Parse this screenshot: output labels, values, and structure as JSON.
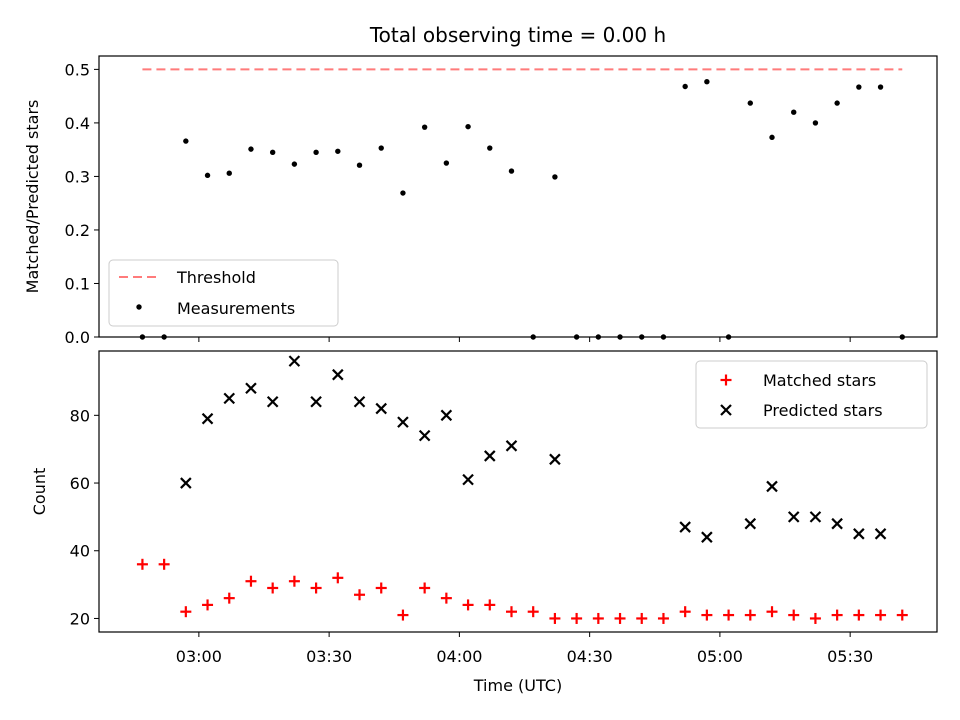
{
  "chart_data": [
    {
      "type": "scatter",
      "title": "Total observing time = 0.00 h",
      "xlabel": "",
      "ylabel": "Matched/Predicted stars",
      "ylim": [
        0,
        0.525
      ],
      "yticks": [
        0.0,
        0.1,
        0.2,
        0.3,
        0.4,
        0.5
      ],
      "ytick_labels": [
        "0.0",
        "0.1",
        "0.2",
        "0.3",
        "0.4",
        "0.5"
      ],
      "threshold": {
        "name": "Threshold",
        "value": 0.5,
        "x_range": [
          "02:47",
          "05:42"
        ],
        "color": "#ff7b7b"
      },
      "legend": {
        "position": "lower-left",
        "entries": [
          "Threshold",
          "Measurements"
        ]
      },
      "series": [
        {
          "name": "Measurements",
          "color": "#000000",
          "marker": "dot",
          "x": [
            "02:47",
            "02:52",
            "02:57",
            "03:02",
            "03:07",
            "03:12",
            "03:17",
            "03:22",
            "03:27",
            "03:32",
            "03:37",
            "03:42",
            "03:47",
            "03:52",
            "03:57",
            "04:02",
            "04:07",
            "04:12",
            "04:17",
            "04:22",
            "04:27",
            "04:32",
            "04:37",
            "04:42",
            "04:47",
            "04:52",
            "04:57",
            "05:02",
            "05:07",
            "05:12",
            "05:17",
            "05:22",
            "05:27",
            "05:32",
            "05:37",
            "05:42"
          ],
          "y": [
            0.0,
            0.0,
            0.366,
            0.302,
            0.306,
            0.351,
            0.345,
            0.323,
            0.345,
            0.347,
            0.321,
            0.353,
            0.269,
            0.392,
            0.325,
            0.393,
            0.353,
            0.31,
            0.0,
            0.299,
            0.0,
            0.0,
            0.0,
            0.0,
            0.0,
            0.468,
            0.477,
            0.0,
            0.437,
            0.373,
            0.42,
            0.4,
            0.437,
            0.467,
            0.467,
            0.0
          ]
        }
      ]
    },
    {
      "type": "scatter",
      "title": "",
      "xlabel": "Time (UTC)",
      "ylabel": "Count",
      "ylim": [
        16,
        99
      ],
      "yticks": [
        20,
        40,
        60,
        80
      ],
      "ytick_labels": [
        "20",
        "40",
        "60",
        "80"
      ],
      "xlim": [
        "02:37",
        "05:50"
      ],
      "xticks": [
        "03:00",
        "03:30",
        "04:00",
        "04:30",
        "05:00",
        "05:30"
      ],
      "legend": {
        "position": "top-right",
        "entries": [
          "Matched stars",
          "Predicted stars"
        ]
      },
      "series": [
        {
          "name": "Matched stars",
          "color": "#ff0000",
          "marker": "plus",
          "x": [
            "02:47",
            "02:52",
            "02:57",
            "03:02",
            "03:07",
            "03:12",
            "03:17",
            "03:22",
            "03:27",
            "03:32",
            "03:37",
            "03:42",
            "03:47",
            "03:52",
            "03:57",
            "04:02",
            "04:07",
            "04:12",
            "04:17",
            "04:22",
            "04:27",
            "04:32",
            "04:37",
            "04:42",
            "04:47",
            "04:52",
            "04:57",
            "05:02",
            "05:07",
            "05:12",
            "05:17",
            "05:22",
            "05:27",
            "05:32",
            "05:37",
            "05:42"
          ],
          "y": [
            36,
            36,
            22,
            24,
            26,
            31,
            29,
            31,
            29,
            32,
            27,
            29,
            21,
            29,
            26,
            24,
            24,
            22,
            22,
            20,
            20,
            20,
            20,
            20,
            20,
            22,
            21,
            21,
            21,
            22,
            21,
            20,
            21,
            21,
            21,
            21
          ]
        },
        {
          "name": "Predicted stars",
          "color": "#000000",
          "marker": "x",
          "x": [
            "02:57",
            "03:02",
            "03:07",
            "03:12",
            "03:17",
            "03:22",
            "03:27",
            "03:32",
            "03:37",
            "03:42",
            "03:47",
            "03:52",
            "03:57",
            "04:02",
            "04:07",
            "04:12",
            "04:22",
            "04:52",
            "04:57",
            "05:07",
            "05:12",
            "05:17",
            "05:22",
            "05:27",
            "05:32",
            "05:37"
          ],
          "y": [
            60,
            79,
            85,
            88,
            84,
            96,
            84,
            92,
            84,
            82,
            78,
            74,
            80,
            61,
            68,
            71,
            67,
            47,
            44,
            48,
            59,
            50,
            50,
            48,
            45,
            45
          ]
        }
      ]
    }
  ]
}
